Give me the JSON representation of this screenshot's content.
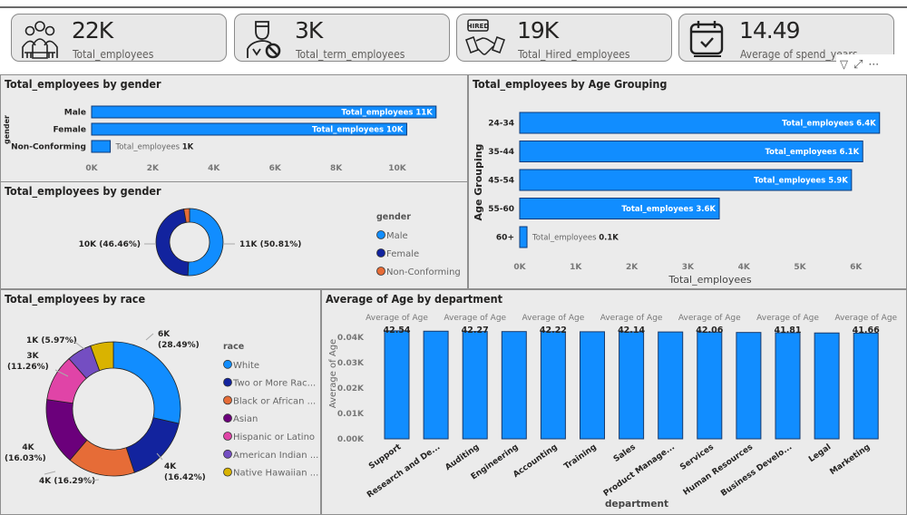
{
  "kpis": [
    {
      "value": "22K",
      "label": "Total_employees",
      "icon": "group-people-icon"
    },
    {
      "value": "3K",
      "label": "Total_term_employees",
      "icon": "terminated-person-icon"
    },
    {
      "value": "19K",
      "label": "Total_Hired_employees",
      "icon": "hired-handshake-icon",
      "badge": "HIRED"
    },
    {
      "value": "14.49",
      "label": "Average of spend_years",
      "icon": "calendar-check-icon"
    }
  ],
  "visual_tools": {
    "filter": "filter-icon",
    "focus": "focus-mode-icon",
    "more": "more-options-icon"
  },
  "colors": {
    "bar": "#118DFF",
    "navy": "#12239E",
    "orange": "#E66C37",
    "purple": "#6B007B",
    "pink": "#E044A7",
    "lavender": "#744EC2",
    "yellow": "#D9B300"
  },
  "chart_data": [
    {
      "type": "bar",
      "orientation": "horizontal",
      "title": "Total_employees by gender",
      "ylabel": "gender",
      "xlabel": "",
      "categories": [
        "Male",
        "Female",
        "Non-Conforming"
      ],
      "values": [
        11270,
        10310,
        610
      ],
      "data_labels": [
        "11K",
        "10K",
        "1K"
      ],
      "series_name": "Total_employees",
      "xticks": [
        "0K",
        "2K",
        "4K",
        "6K",
        "8K",
        "10K"
      ],
      "xlim": [
        0,
        12000
      ]
    },
    {
      "type": "pie",
      "donut": true,
      "title": "Total_employees by gender",
      "legend_title": "gender",
      "legend": "right",
      "categories": [
        "Male",
        "Female",
        "Non-Conforming"
      ],
      "percent": [
        50.81,
        46.46,
        2.73
      ],
      "data_labels": [
        "11K (50.81%)",
        "10K (46.46%)",
        ""
      ]
    },
    {
      "type": "bar",
      "orientation": "horizontal",
      "title": "Total_employees by Age Grouping",
      "ylabel": "Age Grouping",
      "xlabel": "Total_employees",
      "categories": [
        "24-34",
        "35-44",
        "45-54",
        "55-60",
        "60+"
      ],
      "values": [
        6420,
        6120,
        5920,
        3560,
        130
      ],
      "data_labels": [
        "6.4K",
        "6.1K",
        "5.9K",
        "3.6K",
        "0.1K"
      ],
      "series_name": "Total_employees",
      "xticks": [
        "0K",
        "1K",
        "2K",
        "3K",
        "4K",
        "5K",
        "6K"
      ],
      "xlim": [
        0,
        6500
      ]
    },
    {
      "type": "pie",
      "donut": true,
      "title": "Total_employees by race",
      "legend_title": "race",
      "legend": "right",
      "categories": [
        "White",
        "Two or More Rac...",
        "Black or African ...",
        "Asian",
        "Hispanic or Latino",
        "American Indian ...",
        "Native Hawaiian ..."
      ],
      "percent": [
        28.49,
        16.42,
        16.29,
        16.03,
        11.26,
        5.97,
        5.54
      ],
      "data_labels": [
        [
          "6K",
          "(28.49%)"
        ],
        [
          "4K",
          "(16.42%)"
        ],
        [
          "4K (16.29%)"
        ],
        [
          "4K",
          "(16.03%)"
        ],
        [
          "3K",
          "(11.26%)"
        ],
        [
          "1K (5.97%)"
        ],
        []
      ]
    },
    {
      "type": "bar",
      "title": "Average of Age by department",
      "xlabel": "department",
      "ylabel": "Average of Age",
      "categories": [
        "Support",
        "Research and De...",
        "Auditing",
        "Engineering",
        "Accounting",
        "Training",
        "Sales",
        "Product Manage...",
        "Services",
        "Human Resources",
        "Business Develo...",
        "Legal",
        "Marketing"
      ],
      "values": [
        42.54,
        42.4,
        42.27,
        42.25,
        42.22,
        42.18,
        42.14,
        42.1,
        42.06,
        41.9,
        41.81,
        41.7,
        41.66
      ],
      "data_labels": [
        "42.54",
        "",
        "42.27",
        "",
        "42.22",
        "",
        "42.14",
        "",
        "42.06",
        "",
        "41.81",
        "",
        "41.66"
      ],
      "series_name": "Average of Age",
      "yticks": [
        "0.00K",
        "0.01K",
        "0.02K",
        "0.03K",
        "0.04K"
      ],
      "ylim": [
        0,
        45
      ]
    }
  ]
}
